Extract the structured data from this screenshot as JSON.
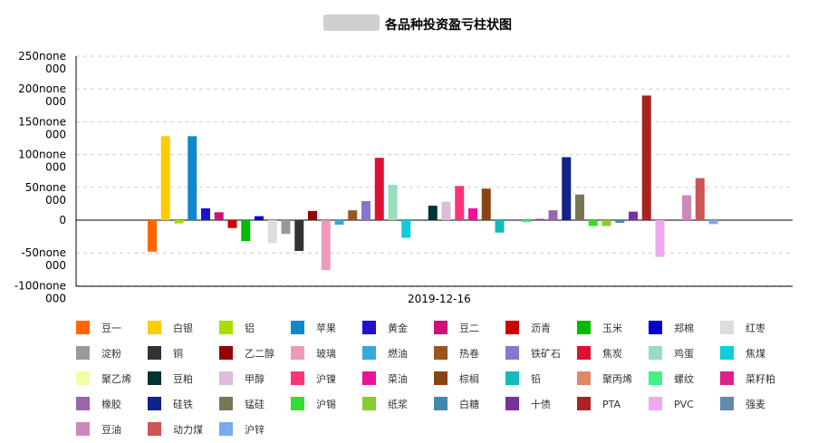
{
  "chart_data": {
    "type": "bar",
    "title": "各品种投资盈亏柱状图",
    "x_category": "2019-12-16",
    "yticks": [
      {
        "value": 250000,
        "label": "250none\n000"
      },
      {
        "value": 200000,
        "label": "200none\n000"
      },
      {
        "value": 150000,
        "label": "150none\n000"
      },
      {
        "value": 100000,
        "label": "100none\n000"
      },
      {
        "value": 50000,
        "label": "50none\n000"
      },
      {
        "value": 0,
        "label": "0"
      },
      {
        "value": -50000,
        "label": "-50none\n000"
      },
      {
        "value": -100000,
        "label": "-100none\n000"
      }
    ],
    "ylim": [
      -100000,
      250000
    ],
    "grid": true,
    "legend_position": "bottom",
    "series": [
      {
        "name": "豆一",
        "color": "#ff6600",
        "value": -48000
      },
      {
        "name": "白银",
        "color": "#ffcc00",
        "value": 128000
      },
      {
        "name": "铝",
        "color": "#aadd00",
        "value": -5000
      },
      {
        "name": "苹果",
        "color": "#1188cc",
        "value": 128000
      },
      {
        "name": "黄金",
        "color": "#2211cc",
        "value": 18000
      },
      {
        "name": "豆二",
        "color": "#cc1177",
        "value": 12000
      },
      {
        "name": "沥青",
        "color": "#cc0000",
        "value": -12000
      },
      {
        "name": "玉米",
        "color": "#00bb00",
        "value": -32000
      },
      {
        "name": "郑棉",
        "color": "#0000cc",
        "value": 6000
      },
      {
        "name": "红枣",
        "color": "#dddddd",
        "value": -35000
      },
      {
        "name": "淀粉",
        "color": "#999999",
        "value": -21000
      },
      {
        "name": "铜",
        "color": "#333333",
        "value": -47000
      },
      {
        "name": "乙二醇",
        "color": "#990000",
        "value": 14000
      },
      {
        "name": "玻璃",
        "color": "#ee99bb",
        "value": -76000
      },
      {
        "name": "燃油",
        "color": "#33aadd",
        "value": -7000
      },
      {
        "name": "热卷",
        "color": "#995522",
        "value": 15000
      },
      {
        "name": "铁矿石",
        "color": "#8877cc",
        "value": 29000
      },
      {
        "name": "焦炭",
        "color": "#dd1133",
        "value": 95000
      },
      {
        "name": "鸡蛋",
        "color": "#99ddbb",
        "value": 54000
      },
      {
        "name": "焦煤",
        "color": "#11ccdd",
        "value": -27000
      },
      {
        "name": "聚乙烯",
        "color": "#eeffaa",
        "value": 0
      },
      {
        "name": "豆粕",
        "color": "#003333",
        "value": 22000
      },
      {
        "name": "甲醇",
        "color": "#ddbbdd",
        "value": 28000
      },
      {
        "name": "沪镍",
        "color": "#ff3377",
        "value": 52000
      },
      {
        "name": "菜油",
        "color": "#ee1199",
        "value": 18000
      },
      {
        "name": "棕榈",
        "color": "#884411",
        "value": 48000
      },
      {
        "name": "铅",
        "color": "#11bbbb",
        "value": -19000
      },
      {
        "name": "聚丙烯",
        "color": "#dd8866",
        "value": 0
      },
      {
        "name": "螺纹",
        "color": "#44ee88",
        "value": -3000
      },
      {
        "name": "菜籽粕",
        "color": "#dd2288",
        "value": 2000
      },
      {
        "name": "橡胶",
        "color": "#9966aa",
        "value": 15000
      },
      {
        "name": "硅铁",
        "color": "#112288",
        "value": 96000
      },
      {
        "name": "锰硅",
        "color": "#777755",
        "value": 39000
      },
      {
        "name": "沪锡",
        "color": "#33dd33",
        "value": -9000
      },
      {
        "name": "纸浆",
        "color": "#88cc33",
        "value": -9000
      },
      {
        "name": "白糖",
        "color": "#4488aa",
        "value": -4000
      },
      {
        "name": "十债",
        "color": "#773399",
        "value": 13000
      },
      {
        "name": "PTA",
        "color": "#aa2222",
        "value": 190000
      },
      {
        "name": "PVC",
        "color": "#eeaaee",
        "value": -56000
      },
      {
        "name": "强麦",
        "color": "#6688aa",
        "value": 0
      },
      {
        "name": "豆油",
        "color": "#cc88bb",
        "value": 38000
      },
      {
        "name": "动力煤",
        "color": "#cc5555",
        "value": 64000
      },
      {
        "name": "沪锌",
        "color": "#77aaee",
        "value": -6000
      }
    ]
  }
}
